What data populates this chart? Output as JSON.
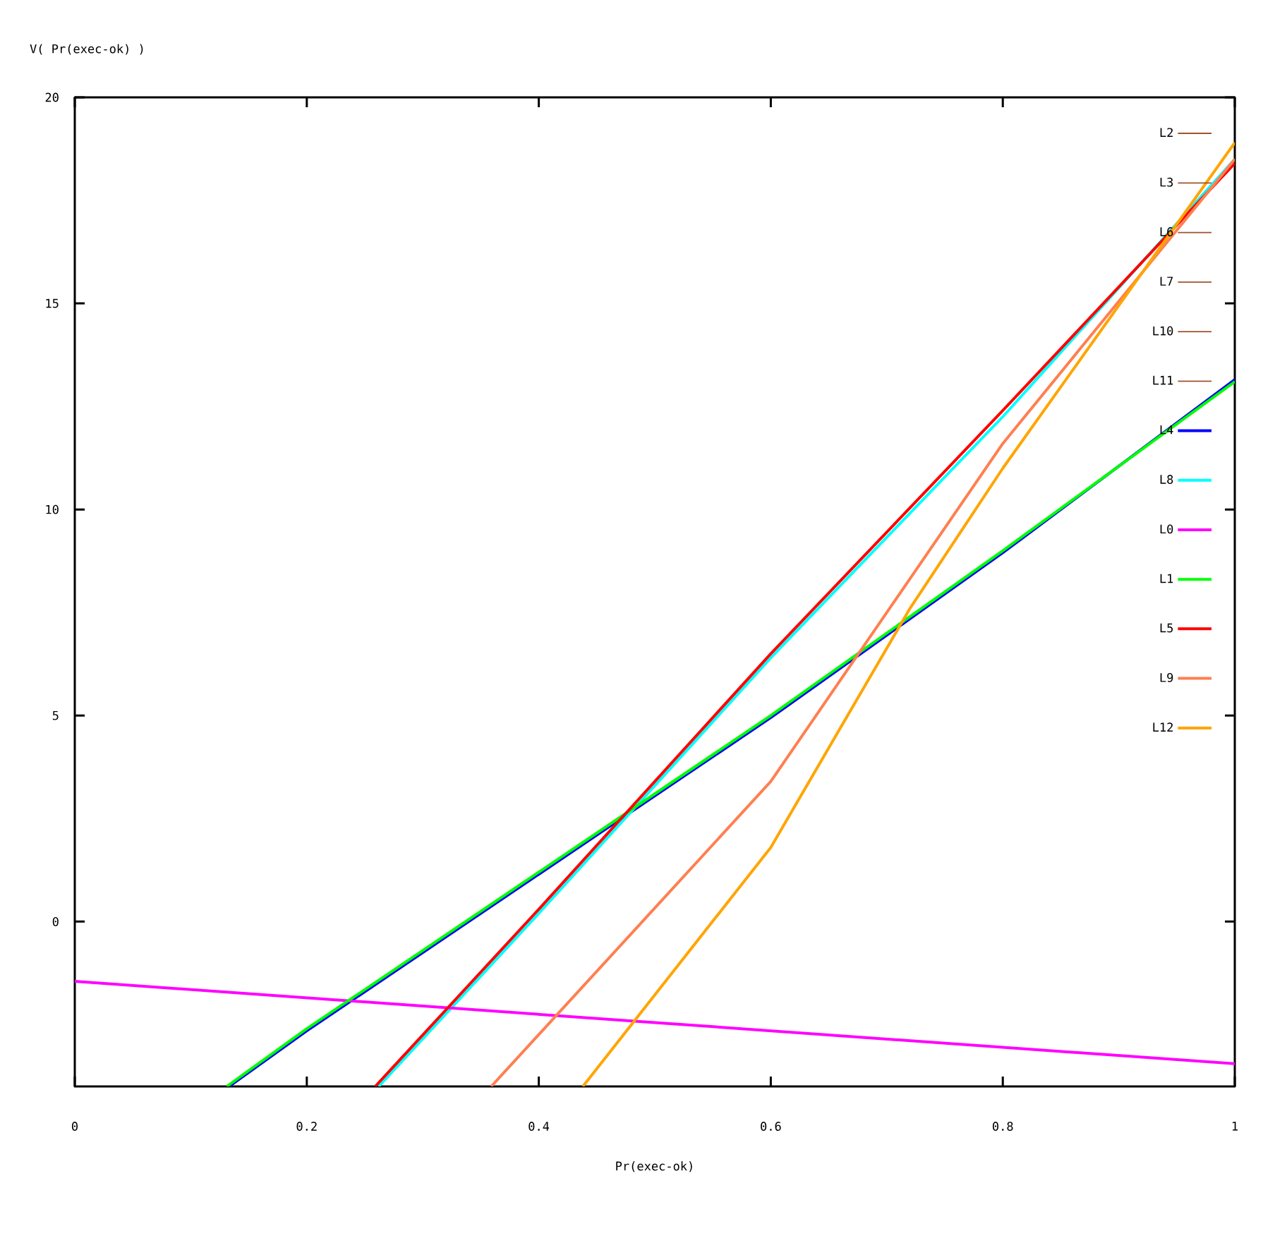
{
  "chart_data": {
    "type": "line",
    "xlabel": "Pr(exec-ok)",
    "ylabel": "V( Pr(exec-ok) )",
    "xlim": [
      0,
      1
    ],
    "ylim": [
      -4,
      20
    ],
    "xticks": [
      0,
      0.2,
      0.4,
      0.6,
      0.8,
      1
    ],
    "yticks": [
      0,
      5,
      10,
      15,
      20
    ],
    "legend": "top right",
    "series": [
      {
        "name": "L2",
        "color": "#a0522d"
      },
      {
        "name": "L3",
        "color": "#a0522d"
      },
      {
        "name": "L6",
        "color": "#a0522d"
      },
      {
        "name": "L7",
        "color": "#a0522d"
      },
      {
        "name": "L10",
        "color": "#a0522d"
      },
      {
        "name": "L11",
        "color": "#a0522d"
      },
      {
        "name": "L4",
        "color": "#0000ff",
        "x": [
          0.133,
          0.2,
          0.5,
          0.6,
          0.8,
          1
        ],
        "values": [
          -4,
          -2.65,
          3.05,
          4.95,
          8.95,
          13.15
        ]
      },
      {
        "name": "L8",
        "color": "#00ffff",
        "x": [
          0.262,
          0.4,
          0.6,
          0.8,
          1
        ],
        "values": [
          -4,
          0.2,
          6.4,
          12.25,
          18.5
        ]
      },
      {
        "name": "L0",
        "color": "#ff00ff",
        "x": [
          0,
          0.5,
          1
        ],
        "values": [
          -1.45,
          -2.45,
          -3.45
        ]
      },
      {
        "name": "L1",
        "color": "#00ff00",
        "x": [
          0.131,
          0.2,
          0.5,
          0.6,
          0.8,
          1
        ],
        "values": [
          -4,
          -2.6,
          3.1,
          5.0,
          9.0,
          13.1
        ]
      },
      {
        "name": "L5",
        "color": "#ff0000",
        "x": [
          0.259,
          0.4,
          0.6,
          0.8,
          1
        ],
        "values": [
          -4,
          0.3,
          6.5,
          12.4,
          18.4
        ]
      },
      {
        "name": "L9",
        "color": "#ff7f50",
        "x": [
          0.359,
          0.6,
          0.8,
          1
        ],
        "values": [
          -4,
          3.4,
          11.6,
          18.5
        ]
      },
      {
        "name": "L12",
        "color": "#ffa500",
        "x": [
          0.438,
          0.6,
          0.72,
          0.8,
          1
        ],
        "values": [
          -4,
          1.8,
          7.6,
          11.0,
          18.9
        ]
      }
    ]
  }
}
